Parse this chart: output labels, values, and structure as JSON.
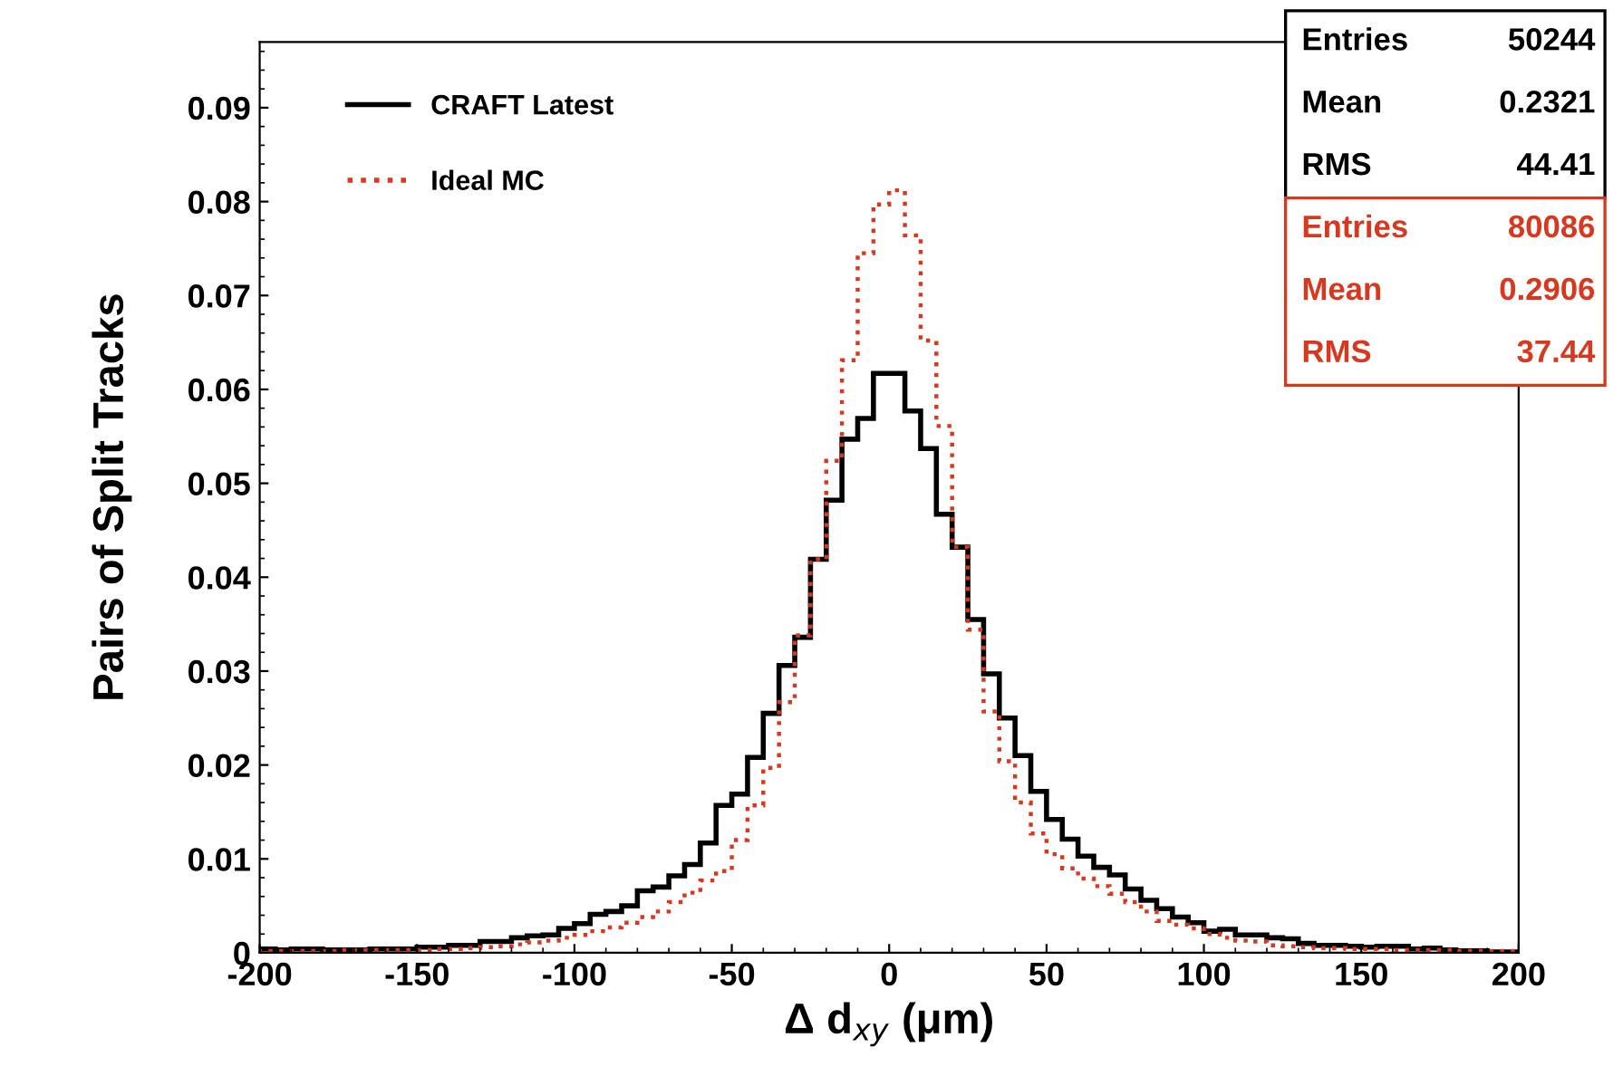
{
  "chart_data": {
    "type": "histogram",
    "xlabel": "Δ d$_{xy}$ (μm)",
    "ylabel": "Pairs of Split Tracks",
    "bins": [
      -200,
      -195,
      -190,
      -185,
      -180,
      -175,
      -170,
      -165,
      -160,
      -155,
      -150,
      -145,
      -140,
      -135,
      -130,
      -125,
      -120,
      -115,
      -110,
      -105,
      -100,
      -95,
      -90,
      -85,
      -80,
      -75,
      -70,
      -65,
      -60,
      -55,
      -50,
      -45,
      -40,
      -35,
      -30,
      -25,
      -20,
      -15,
      -10,
      -5,
      0,
      5,
      10,
      15,
      20,
      25,
      30,
      35,
      40,
      45,
      50,
      55,
      60,
      65,
      70,
      75,
      80,
      85,
      90,
      95,
      100,
      105,
      110,
      115,
      120,
      125,
      130,
      135,
      140,
      145,
      150,
      155,
      160,
      165,
      170,
      175,
      180,
      185,
      190,
      195,
      200
    ],
    "series": [
      {
        "name": "CRAFT Latest",
        "color": "#000000",
        "line_style": "solid",
        "values": [
          0.0004,
          0.0003,
          0.0004,
          0.0004,
          0.0003,
          0.0003,
          0.0003,
          0.0004,
          0.0004,
          0.0004,
          0.0006,
          0.0006,
          0.0008,
          0.0008,
          0.0012,
          0.0012,
          0.0016,
          0.0018,
          0.0019,
          0.0026,
          0.0031,
          0.0041,
          0.0044,
          0.005,
          0.0066,
          0.007,
          0.0082,
          0.0094,
          0.0117,
          0.0157,
          0.0169,
          0.0208,
          0.0255,
          0.0306,
          0.0336,
          0.0419,
          0.0482,
          0.0547,
          0.0569,
          0.0617,
          0.0617,
          0.0577,
          0.0537,
          0.0467,
          0.0432,
          0.0355,
          0.0297,
          0.025,
          0.021,
          0.0172,
          0.0142,
          0.0121,
          0.0103,
          0.0091,
          0.0083,
          0.0068,
          0.0056,
          0.0047,
          0.0038,
          0.0032,
          0.0023,
          0.0025,
          0.0019,
          0.0019,
          0.0016,
          0.0015,
          0.001,
          0.0008,
          0.0008,
          0.0007,
          0.0006,
          0.0007,
          0.0007,
          0.0004,
          0.0005,
          0.0003,
          0.0002,
          0.0002,
          0.0001,
          0.0001
        ]
      },
      {
        "name": "Ideal MC",
        "color": "#d9381e",
        "line_style": "dotted",
        "values": [
          0.0002,
          0.0002,
          0.0002,
          0.0002,
          0.0002,
          0.0003,
          0.0003,
          0.0003,
          0.0003,
          0.0003,
          0.0003,
          0.0004,
          0.0004,
          0.0005,
          0.0006,
          0.0007,
          0.0009,
          0.0011,
          0.0013,
          0.0016,
          0.0019,
          0.0023,
          0.0027,
          0.0032,
          0.0038,
          0.0044,
          0.0054,
          0.0064,
          0.0077,
          0.0087,
          0.012,
          0.0157,
          0.0197,
          0.0267,
          0.0338,
          0.0419,
          0.0524,
          0.0631,
          0.0745,
          0.0797,
          0.0812,
          0.0764,
          0.0652,
          0.0561,
          0.0432,
          0.0344,
          0.0257,
          0.0204,
          0.016,
          0.0127,
          0.0105,
          0.009,
          0.0079,
          0.0071,
          0.0063,
          0.0054,
          0.0044,
          0.0034,
          0.003,
          0.0026,
          0.002,
          0.0016,
          0.0013,
          0.0012,
          0.0008,
          0.0007,
          0.0006,
          0.0005,
          0.0005,
          0.0004,
          0.0004,
          0.0004,
          0.0003,
          0.0003,
          0.0003,
          0.0003,
          0.0002,
          0.0002,
          0.0002,
          0.0002
        ]
      }
    ],
    "xlim": [
      -200,
      200
    ],
    "xticks": [
      -200,
      -150,
      -100,
      -50,
      0,
      50,
      100,
      150,
      200
    ],
    "ylim": [
      0,
      0.097
    ],
    "yticks": [
      0,
      0.01,
      0.02,
      0.03,
      0.04,
      0.05,
      0.06,
      0.07,
      0.08,
      0.09
    ],
    "grid": false,
    "legend": "top left",
    "annotations": [
      "Entries 50244",
      "Mean 0.2321",
      "RMS 44.41",
      "Entries 80086",
      "Mean 0.2906",
      "RMS 37.44"
    ]
  }
}
